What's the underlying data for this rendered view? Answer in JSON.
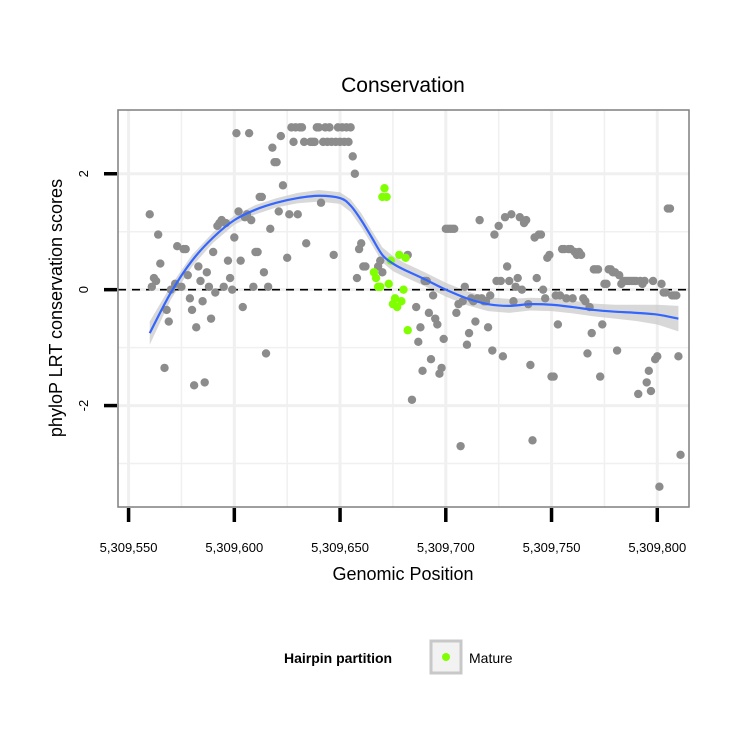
{
  "chart_data": {
    "type": "scatter",
    "title": "Conservation",
    "xlabel": "Genomic Position",
    "ylabel": "phyloP LRT conservation scores",
    "xlim": [
      5309545,
      5309815
    ],
    "ylim": [
      -3.75,
      3.1
    ],
    "x_ticks": [
      5309550,
      5309600,
      5309650,
      5309700,
      5309750,
      5309800
    ],
    "x_tick_labels": [
      "5,309,550",
      "5,309,600",
      "5,309,650",
      "5,309,700",
      "5,309,750",
      "5,309,800"
    ],
    "y_ticks": [
      -2,
      0,
      2
    ],
    "y_tick_labels": [
      "-2",
      "0",
      "2"
    ],
    "reference_line_y": 0,
    "legend": {
      "title": "Hairpin partition",
      "entries": [
        {
          "label": "Mature",
          "color": "#7fff00"
        }
      ]
    },
    "colors": {
      "other_points": "#8c8c8c",
      "mature_points": "#7fff00",
      "smooth_line": "#3366ff",
      "ribbon": "#c8c8c8",
      "grid": "#f0f0f0",
      "panel_border": "#7f7f7f"
    },
    "series": [
      {
        "name": "Other",
        "points": [
          [
            5309560,
            1.3
          ],
          [
            5309561,
            0.05
          ],
          [
            5309562,
            0.2
          ],
          [
            5309563,
            0.15
          ],
          [
            5309564,
            0.95
          ],
          [
            5309565,
            0.45
          ],
          [
            5309567,
            -1.35
          ],
          [
            5309568,
            -0.35
          ],
          [
            5309569,
            -0.55
          ],
          [
            5309570,
            0.0
          ],
          [
            5309572,
            0.1
          ],
          [
            5309573,
            0.75
          ],
          [
            5309575,
            0.05
          ],
          [
            5309576,
            0.7
          ],
          [
            5309577,
            0.7
          ],
          [
            5309578,
            0.25
          ],
          [
            5309579,
            -0.15
          ],
          [
            5309580,
            -0.35
          ],
          [
            5309581,
            -1.65
          ],
          [
            5309582,
            -0.65
          ],
          [
            5309583,
            0.4
          ],
          [
            5309584,
            0.15
          ],
          [
            5309585,
            -0.2
          ],
          [
            5309586,
            -1.6
          ],
          [
            5309587,
            0.3
          ],
          [
            5309588,
            0.05
          ],
          [
            5309589,
            -0.5
          ],
          [
            5309590,
            0.65
          ],
          [
            5309591,
            -0.05
          ],
          [
            5309592,
            1.1
          ],
          [
            5309593,
            1.15
          ],
          [
            5309594,
            1.2
          ],
          [
            5309595,
            0.05
          ],
          [
            5309596,
            1.15
          ],
          [
            5309597,
            0.5
          ],
          [
            5309598,
            0.2
          ],
          [
            5309599,
            0.0
          ],
          [
            5309600,
            0.9
          ],
          [
            5309601,
            2.7
          ],
          [
            5309602,
            1.35
          ],
          [
            5309603,
            0.5
          ],
          [
            5309604,
            -0.3
          ],
          [
            5309605,
            1.25
          ],
          [
            5309606,
            1.3
          ],
          [
            5309607,
            2.7
          ],
          [
            5309608,
            1.2
          ],
          [
            5309609,
            0.05
          ],
          [
            5309610,
            0.65
          ],
          [
            5309611,
            0.65
          ],
          [
            5309612,
            1.6
          ],
          [
            5309613,
            1.6
          ],
          [
            5309614,
            0.3
          ],
          [
            5309615,
            -1.1
          ],
          [
            5309616,
            0.05
          ],
          [
            5309617,
            1.05
          ],
          [
            5309618,
            2.45
          ],
          [
            5309619,
            2.2
          ],
          [
            5309620,
            2.2
          ],
          [
            5309621,
            1.35
          ],
          [
            5309622,
            2.65
          ],
          [
            5309623,
            1.8
          ],
          [
            5309625,
            0.55
          ],
          [
            5309626,
            1.3
          ],
          [
            5309627,
            2.8
          ],
          [
            5309628,
            2.55
          ],
          [
            5309629,
            2.8
          ],
          [
            5309630,
            1.3
          ],
          [
            5309631,
            2.8
          ],
          [
            5309632,
            2.8
          ],
          [
            5309633,
            2.55
          ],
          [
            5309634,
            0.8
          ],
          [
            5309636,
            2.55
          ],
          [
            5309637,
            2.55
          ],
          [
            5309638,
            2.55
          ],
          [
            5309639,
            2.8
          ],
          [
            5309640,
            2.8
          ],
          [
            5309641,
            1.5
          ],
          [
            5309642,
            2.55
          ],
          [
            5309643,
            2.8
          ],
          [
            5309644,
            2.55
          ],
          [
            5309645,
            2.8
          ],
          [
            5309646,
            2.55
          ],
          [
            5309647,
            0.6
          ],
          [
            5309648,
            2.55
          ],
          [
            5309649,
            2.8
          ],
          [
            5309650,
            2.55
          ],
          [
            5309651,
            2.8
          ],
          [
            5309652,
            2.55
          ],
          [
            5309653,
            2.8
          ],
          [
            5309654,
            2.55
          ],
          [
            5309655,
            2.8
          ],
          [
            5309656,
            2.3
          ],
          [
            5309657,
            2.0
          ],
          [
            5309658,
            0.2
          ],
          [
            5309659,
            0.7
          ],
          [
            5309660,
            0.8
          ],
          [
            5309661,
            0.4
          ],
          [
            5309662,
            0.4
          ],
          [
            5309668,
            0.4
          ],
          [
            5309669,
            0.5
          ],
          [
            5309670,
            0.3
          ],
          [
            5309682,
            0.6
          ],
          [
            5309684,
            -1.9
          ],
          [
            5309686,
            -0.3
          ],
          [
            5309687,
            -0.9
          ],
          [
            5309688,
            -0.65
          ],
          [
            5309689,
            -1.4
          ],
          [
            5309690,
            0.15
          ],
          [
            5309691,
            0.15
          ],
          [
            5309692,
            -0.4
          ],
          [
            5309693,
            -1.2
          ],
          [
            5309694,
            -0.1
          ],
          [
            5309695,
            -0.5
          ],
          [
            5309696,
            -0.6
          ],
          [
            5309697,
            -1.45
          ],
          [
            5309698,
            -1.35
          ],
          [
            5309699,
            -0.85
          ],
          [
            5309700,
            1.05
          ],
          [
            5309701,
            1.05
          ],
          [
            5309702,
            1.05
          ],
          [
            5309703,
            1.05
          ],
          [
            5309704,
            1.05
          ],
          [
            5309705,
            -0.4
          ],
          [
            5309706,
            -0.25
          ],
          [
            5309707,
            -2.7
          ],
          [
            5309708,
            -0.2
          ],
          [
            5309709,
            0.05
          ],
          [
            5309710,
            -0.95
          ],
          [
            5309711,
            -0.75
          ],
          [
            5309712,
            -0.15
          ],
          [
            5309713,
            -0.2
          ],
          [
            5309714,
            -0.55
          ],
          [
            5309715,
            -0.15
          ],
          [
            5309716,
            1.2
          ],
          [
            5309717,
            -0.15
          ],
          [
            5309718,
            -0.2
          ],
          [
            5309719,
            -0.2
          ],
          [
            5309720,
            -0.65
          ],
          [
            5309721,
            -0.1
          ],
          [
            5309722,
            -1.05
          ],
          [
            5309723,
            0.95
          ],
          [
            5309724,
            0.15
          ],
          [
            5309725,
            1.1
          ],
          [
            5309726,
            0.15
          ],
          [
            5309727,
            -1.15
          ],
          [
            5309728,
            1.25
          ],
          [
            5309729,
            0.4
          ],
          [
            5309730,
            0.15
          ],
          [
            5309731,
            1.3
          ],
          [
            5309732,
            -0.2
          ],
          [
            5309733,
            0.05
          ],
          [
            5309734,
            0.2
          ],
          [
            5309735,
            1.25
          ],
          [
            5309736,
            0.0
          ],
          [
            5309737,
            1.15
          ],
          [
            5309738,
            1.2
          ],
          [
            5309739,
            -0.25
          ],
          [
            5309740,
            -1.3
          ],
          [
            5309741,
            -2.6
          ],
          [
            5309742,
            0.9
          ],
          [
            5309743,
            0.2
          ],
          [
            5309744,
            0.95
          ],
          [
            5309745,
            0.95
          ],
          [
            5309746,
            0.0
          ],
          [
            5309747,
            -0.15
          ],
          [
            5309748,
            0.55
          ],
          [
            5309749,
            0.6
          ],
          [
            5309750,
            -1.5
          ],
          [
            5309751,
            -1.5
          ],
          [
            5309752,
            -0.1
          ],
          [
            5309753,
            -0.6
          ],
          [
            5309754,
            -0.1
          ],
          [
            5309755,
            0.7
          ],
          [
            5309756,
            0.7
          ],
          [
            5309757,
            -0.15
          ],
          [
            5309758,
            0.7
          ],
          [
            5309759,
            0.7
          ],
          [
            5309760,
            -0.15
          ],
          [
            5309761,
            0.65
          ],
          [
            5309762,
            0.6
          ],
          [
            5309763,
            0.65
          ],
          [
            5309764,
            0.6
          ],
          [
            5309765,
            -0.15
          ],
          [
            5309766,
            -0.2
          ],
          [
            5309767,
            -1.1
          ],
          [
            5309768,
            -0.3
          ],
          [
            5309769,
            -0.75
          ],
          [
            5309770,
            0.35
          ],
          [
            5309771,
            0.35
          ],
          [
            5309772,
            0.35
          ],
          [
            5309773,
            -1.5
          ],
          [
            5309774,
            -0.6
          ],
          [
            5309775,
            0.1
          ],
          [
            5309776,
            0.1
          ],
          [
            5309777,
            0.35
          ],
          [
            5309778,
            0.35
          ],
          [
            5309779,
            0.3
          ],
          [
            5309780,
            0.3
          ],
          [
            5309781,
            -1.05
          ],
          [
            5309782,
            0.25
          ],
          [
            5309783,
            0.1
          ],
          [
            5309784,
            0.15
          ],
          [
            5309785,
            0.15
          ],
          [
            5309786,
            0.15
          ],
          [
            5309787,
            0.15
          ],
          [
            5309788,
            0.15
          ],
          [
            5309789,
            0.15
          ],
          [
            5309790,
            0.15
          ],
          [
            5309791,
            -1.8
          ],
          [
            5309792,
            0.15
          ],
          [
            5309793,
            0.1
          ],
          [
            5309794,
            0.15
          ],
          [
            5309795,
            -1.6
          ],
          [
            5309796,
            -1.4
          ],
          [
            5309797,
            -1.75
          ],
          [
            5309798,
            0.15
          ],
          [
            5309799,
            -1.2
          ],
          [
            5309800,
            -1.15
          ],
          [
            5309801,
            -3.4
          ],
          [
            5309802,
            0.1
          ],
          [
            5309803,
            -0.05
          ],
          [
            5309804,
            -0.05
          ],
          [
            5309805,
            1.4
          ],
          [
            5309806,
            1.4
          ],
          [
            5309807,
            -0.1
          ],
          [
            5309808,
            -0.1
          ],
          [
            5309809,
            -0.1
          ],
          [
            5309810,
            -1.15
          ],
          [
            5309811,
            -2.85
          ]
        ]
      },
      {
        "name": "Mature",
        "points": [
          [
            5309666,
            0.3
          ],
          [
            5309667,
            0.2
          ],
          [
            5309668,
            0.05
          ],
          [
            5309669,
            0.05
          ],
          [
            5309670,
            1.6
          ],
          [
            5309671,
            1.75
          ],
          [
            5309672,
            1.6
          ],
          [
            5309673,
            0.1
          ],
          [
            5309674,
            0.5
          ],
          [
            5309675,
            -0.25
          ],
          [
            5309676,
            -0.15
          ],
          [
            5309677,
            -0.3
          ],
          [
            5309678,
            0.6
          ],
          [
            5309679,
            -0.2
          ],
          [
            5309680,
            0.0
          ],
          [
            5309681,
            0.55
          ],
          [
            5309682,
            -0.7
          ]
        ]
      }
    ],
    "smooth": {
      "method": "loess",
      "x": [
        5309560,
        5309570,
        5309580,
        5309590,
        5309600,
        5309610,
        5309620,
        5309630,
        5309640,
        5309650,
        5309655,
        5309660,
        5309665,
        5309670,
        5309675,
        5309680,
        5309690,
        5309700,
        5309710,
        5309720,
        5309730,
        5309740,
        5309750,
        5309760,
        5309770,
        5309780,
        5309790,
        5309800,
        5309810
      ],
      "y": [
        -0.75,
        -0.05,
        0.5,
        0.9,
        1.2,
        1.38,
        1.5,
        1.58,
        1.62,
        1.58,
        1.45,
        1.2,
        0.9,
        0.6,
        0.45,
        0.35,
        0.18,
        0.0,
        -0.15,
        -0.25,
        -0.28,
        -0.25,
        -0.26,
        -0.3,
        -0.35,
        -0.38,
        -0.4,
        -0.43,
        -0.5
      ],
      "se": [
        0.2,
        0.12,
        0.1,
        0.09,
        0.08,
        0.08,
        0.08,
        0.09,
        0.1,
        0.1,
        0.11,
        0.12,
        0.12,
        0.13,
        0.13,
        0.12,
        0.12,
        0.12,
        0.12,
        0.12,
        0.12,
        0.11,
        0.11,
        0.11,
        0.11,
        0.12,
        0.14,
        0.17,
        0.22
      ]
    }
  }
}
